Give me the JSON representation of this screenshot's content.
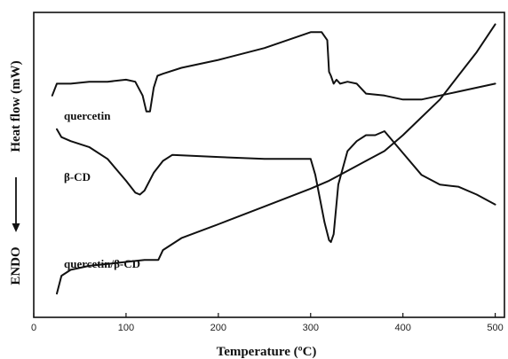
{
  "chart_data": {
    "type": "line",
    "xlabel": "Temperature (ºC)",
    "ylabel": "Heat flow (mW)",
    "y_annotation": "ENDO",
    "xlim": [
      0,
      510
    ],
    "xticks": [
      "0",
      "100",
      "200",
      "300",
      "400",
      "500"
    ],
    "yticks": false,
    "grid": false,
    "series": [
      {
        "name": "quercetin",
        "x": [
          20,
          25,
          40,
          60,
          80,
          100,
          110,
          118,
          122,
          126,
          130,
          134,
          140,
          160,
          200,
          250,
          300,
          312,
          318,
          320,
          322,
          325,
          328,
          332,
          340,
          350,
          360,
          380,
          400,
          420,
          440,
          460,
          480,
          500
        ],
        "y": [
          0.6,
          0.66,
          0.66,
          0.67,
          0.67,
          0.68,
          0.67,
          0.6,
          0.52,
          0.52,
          0.64,
          0.7,
          0.71,
          0.74,
          0.78,
          0.84,
          0.92,
          0.92,
          0.88,
          0.72,
          0.7,
          0.66,
          0.68,
          0.66,
          0.67,
          0.66,
          0.61,
          0.6,
          0.58,
          0.58,
          0.6,
          0.62,
          0.64,
          0.66
        ]
      },
      {
        "name": "β-CD",
        "x": [
          25,
          30,
          40,
          60,
          80,
          100,
          110,
          115,
          120,
          130,
          140,
          150,
          200,
          250,
          300,
          305,
          310,
          315,
          320,
          322,
          325,
          330,
          340,
          350,
          360,
          370,
          380,
          400,
          420,
          440,
          460,
          480,
          500
        ],
        "y": [
          0.43,
          0.39,
          0.37,
          0.34,
          0.28,
          0.17,
          0.11,
          0.1,
          0.12,
          0.21,
          0.27,
          0.3,
          0.29,
          0.28,
          0.28,
          0.2,
          0.08,
          -0.04,
          -0.13,
          -0.14,
          -0.1,
          0.15,
          0.32,
          0.37,
          0.4,
          0.4,
          0.42,
          0.31,
          0.2,
          0.15,
          0.14,
          0.1,
          0.05
        ]
      },
      {
        "name": "quercetin/β-CD",
        "x": [
          25,
          30,
          40,
          60,
          80,
          100,
          120,
          135,
          140,
          160,
          200,
          250,
          300,
          320,
          340,
          360,
          380,
          400,
          420,
          440,
          460,
          480,
          500
        ],
        "y": [
          -0.4,
          -0.31,
          -0.28,
          -0.26,
          -0.25,
          -0.24,
          -0.23,
          -0.23,
          -0.18,
          -0.12,
          -0.05,
          0.04,
          0.13,
          0.17,
          0.22,
          0.27,
          0.32,
          0.4,
          0.49,
          0.58,
          0.7,
          0.82,
          0.96
        ]
      }
    ],
    "ylim": [
      -0.52,
      1.02
    ],
    "line_color": "#111111"
  }
}
